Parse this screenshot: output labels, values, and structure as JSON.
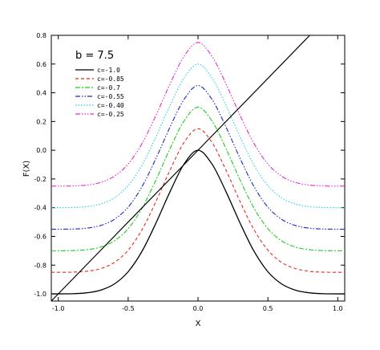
{
  "chart_data": {
    "type": "line",
    "xlabel": "X",
    "ylabel": "F(X)",
    "xlim": [
      -1.05,
      1.05
    ],
    "ylim": [
      -1.05,
      0.8
    ],
    "x_ticks": [
      -1.0,
      -0.5,
      0.0,
      0.5,
      1.0
    ],
    "x_tick_labels": [
      "-1.0",
      "-0.5",
      "0.0",
      "0.5",
      "1.0"
    ],
    "y_ticks": [
      -1.0,
      -0.8,
      -0.6,
      -0.4,
      -0.2,
      0.0,
      0.2,
      0.4,
      0.6,
      0.8
    ],
    "y_tick_labels": [
      "-1.0",
      "-0.8",
      "-0.6",
      "-0.4",
      "-0.2",
      "0.0",
      "0.2",
      "0.4",
      "0.6",
      "0.8"
    ],
    "grid": false,
    "legend_title": "b = 7.5",
    "legend_position": "top-left",
    "series": [
      {
        "name": "c=-1.0",
        "color": "#000000",
        "dash": "solid",
        "x": [
          -1.05,
          -0.9,
          -0.8,
          -0.7,
          -0.6,
          -0.5,
          -0.4,
          -0.3,
          -0.2,
          -0.1,
          0.0,
          0.1,
          0.2,
          0.3,
          0.4,
          0.5,
          0.6,
          0.7,
          0.8,
          0.9,
          1.05
        ],
        "y": [
          -1.0,
          -0.999,
          -0.993,
          -0.975,
          -0.932,
          -0.846,
          -0.702,
          -0.505,
          -0.288,
          -0.096,
          0.0,
          -0.096,
          -0.288,
          -0.505,
          -0.702,
          -0.846,
          -0.932,
          -0.975,
          -0.993,
          -0.999,
          -1.0
        ]
      },
      {
        "name": "c=-0.85",
        "color": "#e8281e",
        "dash": "4,3",
        "x": [
          -1.05,
          -0.9,
          -0.8,
          -0.7,
          -0.6,
          -0.5,
          -0.4,
          -0.3,
          -0.2,
          -0.1,
          0.0,
          0.1,
          0.2,
          0.3,
          0.4,
          0.5,
          0.6,
          0.7,
          0.8,
          0.9,
          1.05
        ],
        "y": [
          -0.85,
          -0.849,
          -0.843,
          -0.825,
          -0.782,
          -0.696,
          -0.552,
          -0.355,
          -0.138,
          0.054,
          0.15,
          0.054,
          -0.138,
          -0.355,
          -0.552,
          -0.696,
          -0.782,
          -0.825,
          -0.843,
          -0.849,
          -0.85
        ]
      },
      {
        "name": "c=-0.7",
        "color": "#1ecc1e",
        "dash": "6,2,2,2",
        "x": [
          -1.05,
          -0.9,
          -0.8,
          -0.7,
          -0.6,
          -0.5,
          -0.4,
          -0.3,
          -0.2,
          -0.1,
          0.0,
          0.1,
          0.2,
          0.3,
          0.4,
          0.5,
          0.6,
          0.7,
          0.8,
          0.9,
          1.05
        ],
        "y": [
          -0.7,
          -0.699,
          -0.693,
          -0.675,
          -0.632,
          -0.546,
          -0.402,
          -0.205,
          0.012,
          0.204,
          0.3,
          0.204,
          0.012,
          -0.205,
          -0.402,
          -0.546,
          -0.632,
          -0.675,
          -0.693,
          -0.699,
          -0.7
        ]
      },
      {
        "name": "c=-0.55",
        "color": "#1e28c8",
        "dash": "6,2,1.5,2,1.5,2",
        "x": [
          -1.05,
          -0.9,
          -0.8,
          -0.7,
          -0.6,
          -0.5,
          -0.4,
          -0.3,
          -0.2,
          -0.1,
          0.0,
          0.1,
          0.2,
          0.3,
          0.4,
          0.5,
          0.6,
          0.7,
          0.8,
          0.9,
          1.05
        ],
        "y": [
          -0.55,
          -0.549,
          -0.543,
          -0.525,
          -0.482,
          -0.396,
          -0.252,
          -0.055,
          0.162,
          0.354,
          0.45,
          0.354,
          0.162,
          -0.055,
          -0.252,
          -0.396,
          -0.482,
          -0.525,
          -0.543,
          -0.549,
          -0.55
        ]
      },
      {
        "name": "c=-0.40",
        "color": "#1ed2e6",
        "dash": "1.5,2",
        "x": [
          -1.05,
          -0.9,
          -0.8,
          -0.7,
          -0.6,
          -0.5,
          -0.4,
          -0.3,
          -0.2,
          -0.1,
          0.0,
          0.1,
          0.2,
          0.3,
          0.4,
          0.5,
          0.6,
          0.7,
          0.8,
          0.9,
          1.05
        ],
        "y": [
          -0.4,
          -0.399,
          -0.393,
          -0.375,
          -0.332,
          -0.246,
          -0.102,
          0.095,
          0.312,
          0.504,
          0.6,
          0.504,
          0.312,
          0.095,
          -0.102,
          -0.246,
          -0.332,
          -0.375,
          -0.393,
          -0.399,
          -0.4
        ]
      },
      {
        "name": "c=-0.25",
        "color": "#e628d2",
        "dash": "6,2,1.5,2,1.5,2,1.5,2",
        "x": [
          -1.05,
          -0.9,
          -0.8,
          -0.7,
          -0.6,
          -0.5,
          -0.4,
          -0.3,
          -0.2,
          -0.1,
          0.0,
          0.1,
          0.2,
          0.3,
          0.4,
          0.5,
          0.6,
          0.7,
          0.8,
          0.9,
          1.05
        ],
        "y": [
          -0.25,
          -0.249,
          -0.243,
          -0.225,
          -0.182,
          -0.096,
          0.048,
          0.245,
          0.462,
          0.654,
          0.75,
          0.654,
          0.462,
          0.245,
          0.048,
          -0.096,
          -0.182,
          -0.225,
          -0.243,
          -0.249,
          -0.25
        ]
      }
    ],
    "reference_line": {
      "color": "#000000",
      "x": [
        -1.05,
        0.8
      ],
      "y": [
        -1.05,
        0.8
      ]
    }
  }
}
